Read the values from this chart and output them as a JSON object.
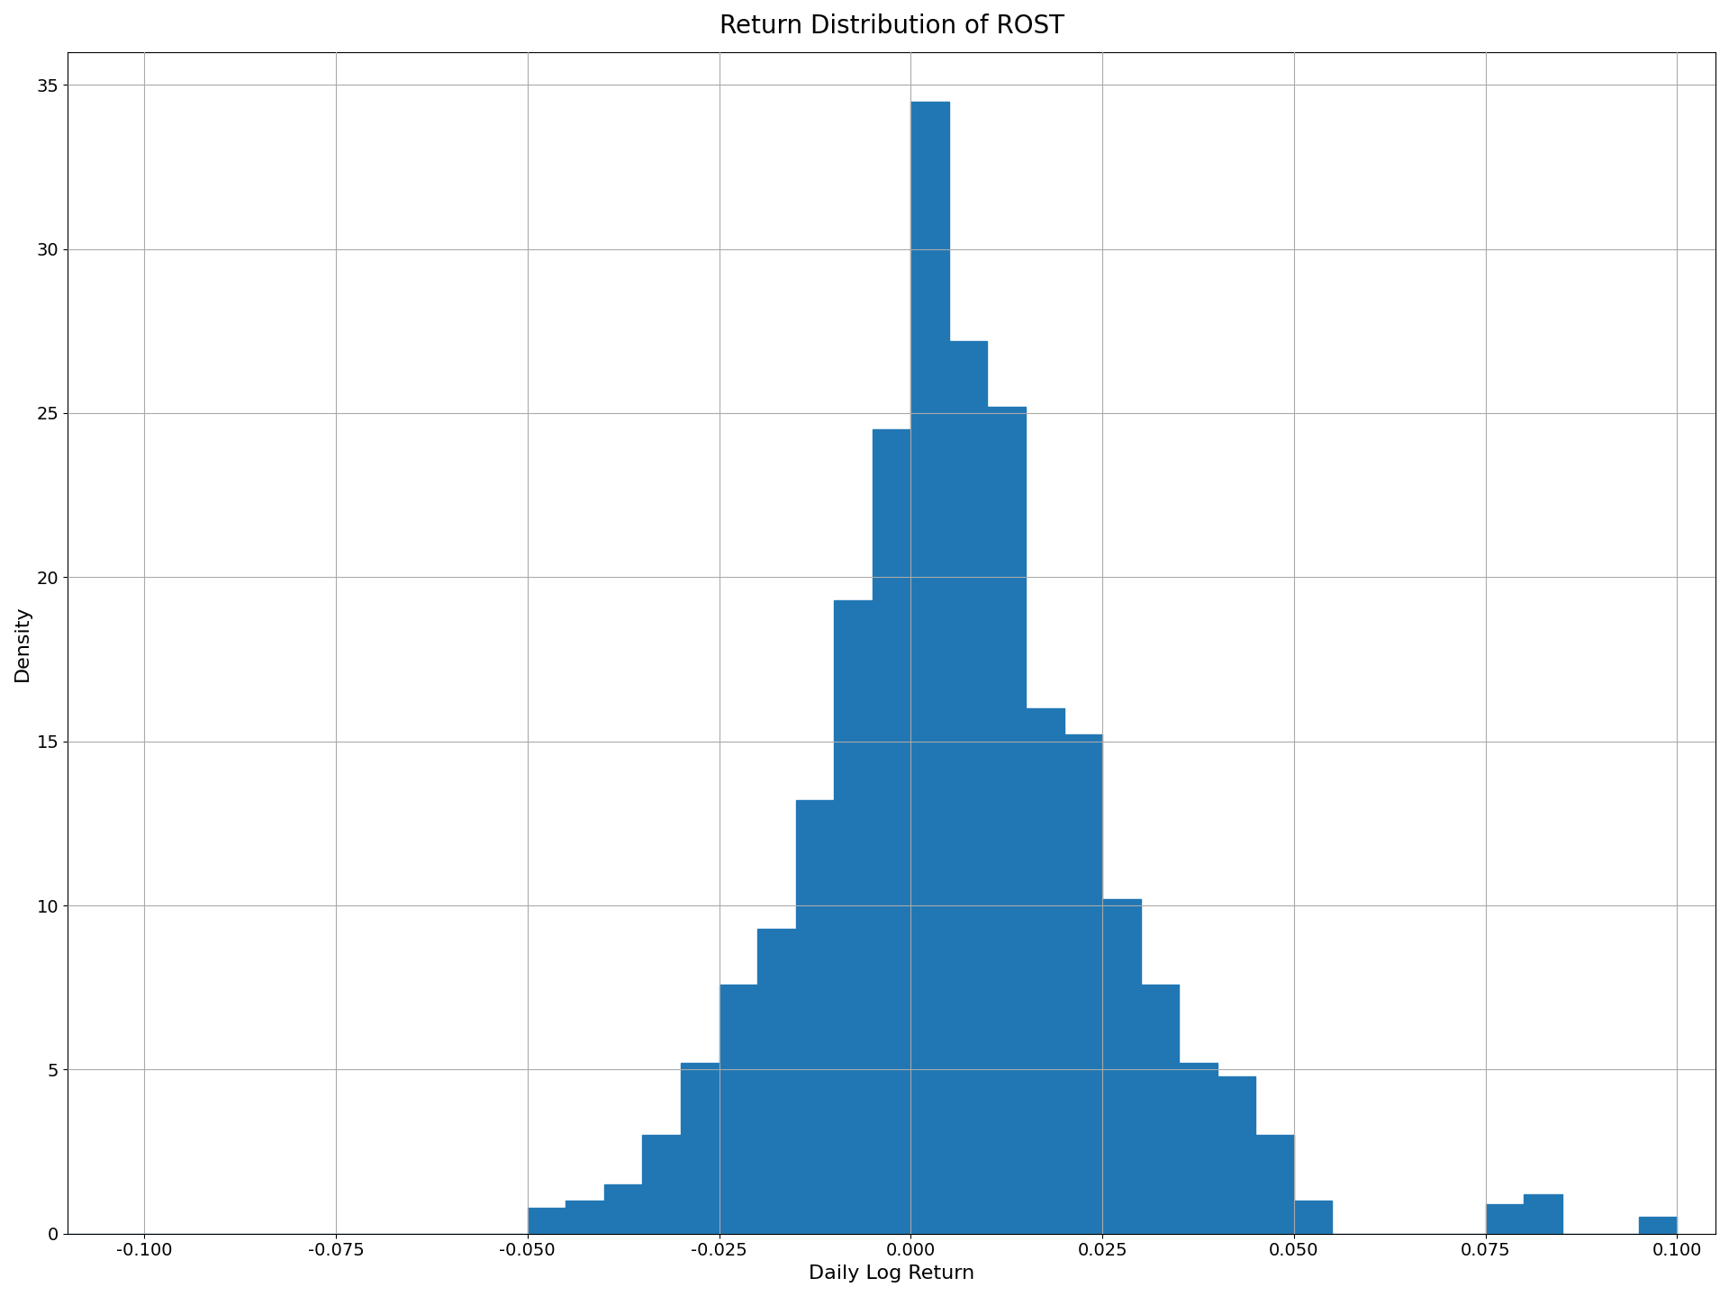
{
  "title": "Return Distribution of ROST",
  "xlabel": "Daily Log Return",
  "ylabel": "Density",
  "bar_color": "#2077b4",
  "xlim": [
    -0.11,
    0.105
  ],
  "ylim": [
    0,
    36
  ],
  "xticks": [
    -0.1,
    -0.075,
    -0.05,
    -0.025,
    0.0,
    0.025,
    0.05,
    0.075,
    0.1
  ],
  "yticks": [
    0,
    5,
    10,
    15,
    20,
    25,
    30,
    35
  ],
  "bin_left_edges": [
    -0.11,
    -0.105,
    -0.1,
    -0.095,
    -0.09,
    -0.085,
    -0.08,
    -0.075,
    -0.07,
    -0.065,
    -0.06,
    -0.055,
    -0.05,
    -0.045,
    -0.04,
    -0.035,
    -0.03,
    -0.025,
    -0.02,
    -0.015,
    -0.01,
    -0.005,
    0.0,
    0.005,
    0.01,
    0.015,
    0.02,
    0.025,
    0.03,
    0.035,
    0.04,
    0.045,
    0.05,
    0.055,
    0.06,
    0.065,
    0.07,
    0.075,
    0.08,
    0.085,
    0.09,
    0.095
  ],
  "densities": [
    0.0,
    0.0,
    0.0,
    0.0,
    0.0,
    0.0,
    0.0,
    0.0,
    0.0,
    0.0,
    0.0,
    0.0,
    0.8,
    1.0,
    1.5,
    3.0,
    5.2,
    7.6,
    9.3,
    13.2,
    19.3,
    24.5,
    34.5,
    27.2,
    25.2,
    16.0,
    15.2,
    10.2,
    7.6,
    5.2,
    4.8,
    3.0,
    1.0,
    0.0,
    0.0,
    0.0,
    0.0,
    0.9,
    1.2,
    0.0,
    0.0,
    0.5
  ],
  "bin_width": 0.005,
  "figsize": [
    19.2,
    14.4
  ],
  "dpi": 100,
  "title_fontsize": 20,
  "label_fontsize": 16,
  "tick_fontsize": 14,
  "grid": true,
  "grid_color": "#aaaaaa",
  "grid_linewidth": 0.8,
  "background_color": "#ffffff"
}
